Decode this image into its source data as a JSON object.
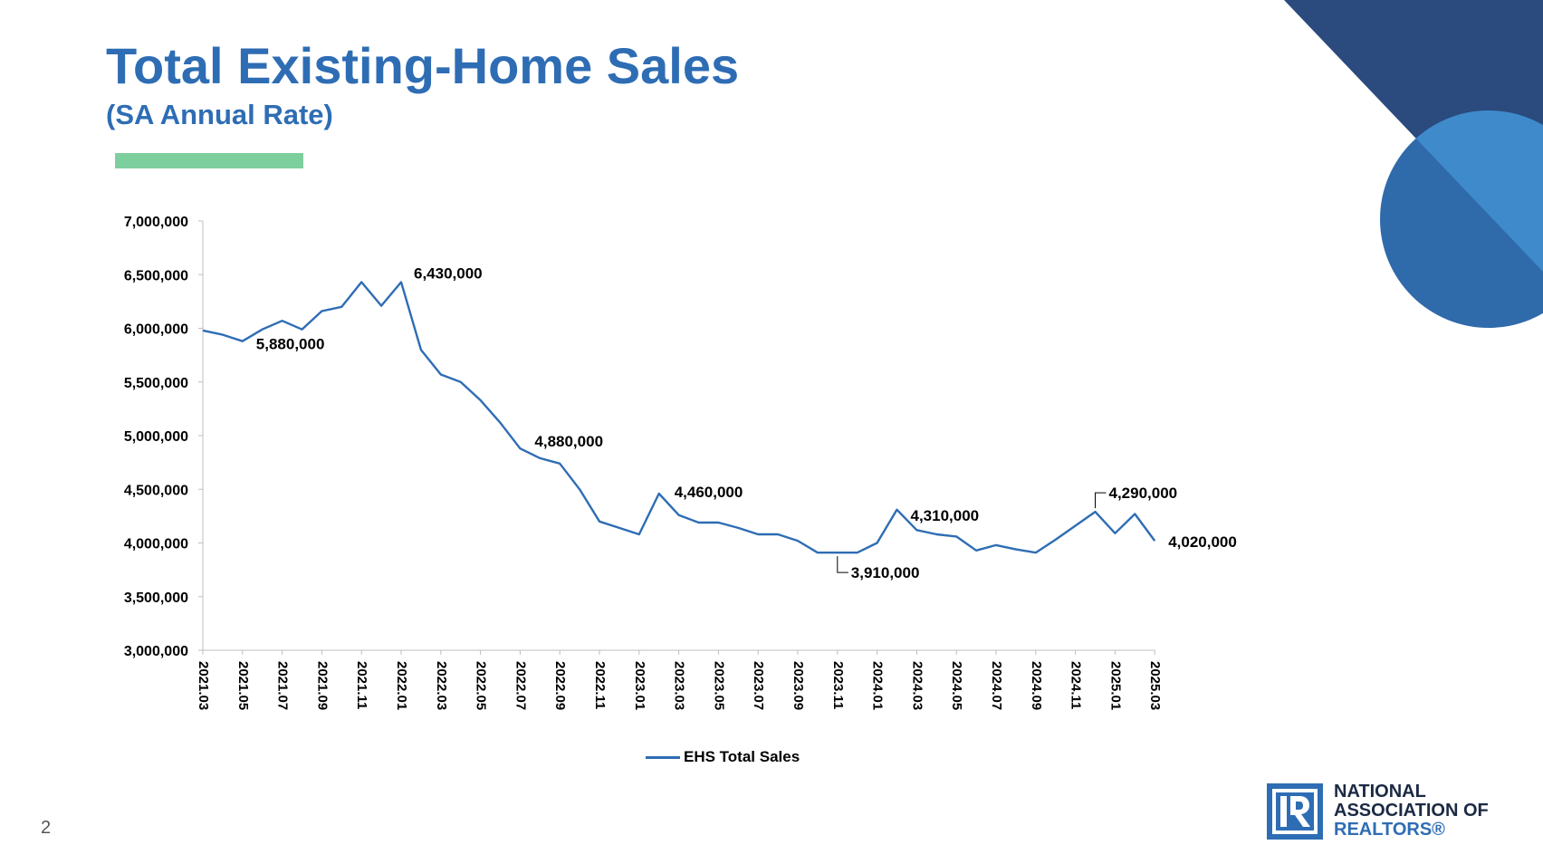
{
  "slide": {
    "title": "Total Existing-Home Sales",
    "subtitle": "(SA Annual Rate)",
    "page_number": "2"
  },
  "colors": {
    "title": "#2e6db4",
    "series_line": "#2e6db4",
    "accent_bar": "#7ecf9e",
    "navy": "#2b4a7d",
    "circle_light": "#3f8acb",
    "circle_dark": "#2f6aab"
  },
  "logo": {
    "icon": "realtor-r-logo-icon",
    "lines": [
      "NATIONAL",
      "ASSOCIATION OF",
      "REALTORS®"
    ]
  },
  "chart_data": {
    "type": "line",
    "title": "",
    "xlabel": "",
    "ylabel": "",
    "ylim": [
      3000000,
      7000000
    ],
    "y_ticks": [
      3000000,
      3500000,
      4000000,
      4500000,
      5000000,
      5500000,
      6000000,
      6500000,
      7000000
    ],
    "y_tick_labels": [
      "3,000,000",
      "3,500,000",
      "4,000,000",
      "4,500,000",
      "5,000,000",
      "5,500,000",
      "6,000,000",
      "6,500,000",
      "7,000,000"
    ],
    "x_tick_labels": [
      "2021.03",
      "2021.05",
      "2021.07",
      "2021.09",
      "2021.11",
      "2022.01",
      "2022.03",
      "2022.05",
      "2022.07",
      "2022.09",
      "2022.11",
      "2023.01",
      "2023.03",
      "2023.05",
      "2023.07",
      "2023.09",
      "2023.11",
      "2024.01",
      "2024.03",
      "2024.05",
      "2024.07",
      "2024.09",
      "2024.11",
      "2025.01",
      "2025.03"
    ],
    "x": [
      "2021.03",
      "2021.04",
      "2021.05",
      "2021.06",
      "2021.07",
      "2021.08",
      "2021.09",
      "2021.10",
      "2021.11",
      "2021.12",
      "2022.01",
      "2022.02",
      "2022.03",
      "2022.04",
      "2022.05",
      "2022.06",
      "2022.07",
      "2022.08",
      "2022.09",
      "2022.10",
      "2022.11",
      "2022.12",
      "2023.01",
      "2023.02",
      "2023.03",
      "2023.04",
      "2023.05",
      "2023.06",
      "2023.07",
      "2023.08",
      "2023.09",
      "2023.10",
      "2023.11",
      "2023.12",
      "2024.01",
      "2024.02",
      "2024.03",
      "2024.04",
      "2024.05",
      "2024.06",
      "2024.07",
      "2024.08",
      "2024.09",
      "2024.10",
      "2024.11",
      "2024.12",
      "2025.01",
      "2025.02",
      "2025.03"
    ],
    "series": [
      {
        "name": "EHS Total Sales",
        "values": [
          5980000,
          5940000,
          5880000,
          5990000,
          6070000,
          5990000,
          6160000,
          6200000,
          6430000,
          6210000,
          6430000,
          5800000,
          5570000,
          5500000,
          5330000,
          5120000,
          4880000,
          4790000,
          4740000,
          4500000,
          4200000,
          4140000,
          4080000,
          4460000,
          4260000,
          4190000,
          4190000,
          4140000,
          4080000,
          4080000,
          4020000,
          3910000,
          3910000,
          3910000,
          4000000,
          4310000,
          4120000,
          4080000,
          4060000,
          3930000,
          3980000,
          3940000,
          3910000,
          4030000,
          4160000,
          4290000,
          4090000,
          4270000,
          4020000
        ]
      }
    ],
    "data_labels": [
      {
        "x": "2021.05",
        "value": 5880000,
        "text": "5,880,000"
      },
      {
        "x": "2022.01",
        "value": 6430000,
        "text": "6,430,000"
      },
      {
        "x": "2022.07",
        "value": 4880000,
        "text": "4,880,000"
      },
      {
        "x": "2023.02",
        "value": 4460000,
        "text": "4,460,000"
      },
      {
        "x": "2023.11",
        "value": 3910000,
        "text": "3,910,000"
      },
      {
        "x": "2024.02",
        "value": 4310000,
        "text": "4,310,000"
      },
      {
        "x": "2024.12",
        "value": 4290000,
        "text": "4,290,000"
      },
      {
        "x": "2025.03",
        "value": 4020000,
        "text": "4,020,000"
      }
    ],
    "legend": {
      "position": "bottom",
      "entries": [
        "EHS Total Sales"
      ]
    },
    "grid": false
  }
}
